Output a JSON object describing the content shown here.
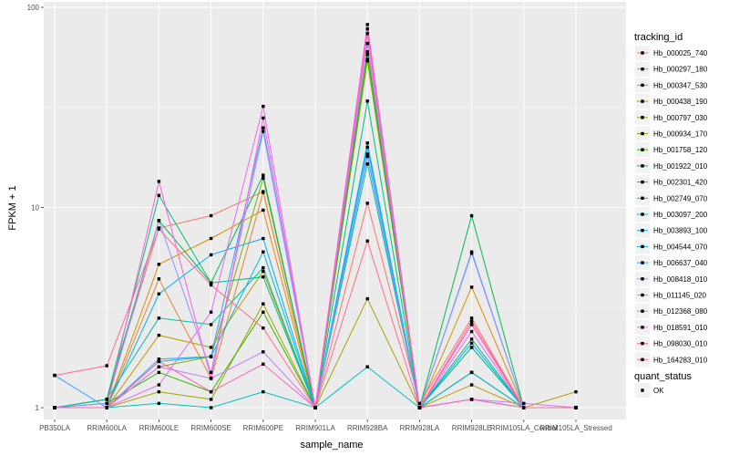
{
  "chart_data": {
    "type": "line",
    "xlabel": "sample_name",
    "ylabel": "FPKM + 1",
    "y_scale": "log10",
    "ylim": [
      1,
      100
    ],
    "y_ticks": [
      {
        "value": 1,
        "label": "1"
      },
      {
        "value": 10,
        "label": "10"
      },
      {
        "value": 100,
        "label": "100"
      }
    ],
    "categories": [
      "PB350LA",
      "RRIM600LA",
      "RRIM600LE",
      "RRIM600SE",
      "RRIM600PE",
      "RRIM901LA",
      "RRIM928BA",
      "RRIM928LA",
      "RRIM928LE",
      "RRIM105LA_Control",
      "RRIM105LA_Stressed"
    ],
    "background": "#ebebeb",
    "grid": true,
    "legend_position": "right",
    "color_legend_title": "tracking_id",
    "shape_legend_title": "quant_status",
    "shape_legend_entries": [
      "OK"
    ],
    "series": [
      {
        "name": "Hb_000025_740",
        "color": "#F8766D",
        "values": [
          1.0,
          1.1,
          7.9,
          9.1,
          12.0,
          1.0,
          10.5,
          1.05,
          2.8,
          1.0,
          1.0
        ]
      },
      {
        "name": "Hb_000297_180",
        "color": "#EA8331",
        "values": [
          1.0,
          1.0,
          4.4,
          1.4,
          11.9,
          1.0,
          74.0,
          1.0,
          2.6,
          1.0,
          1.0
        ]
      },
      {
        "name": "Hb_000347_530",
        "color": "#D89000",
        "values": [
          1.0,
          1.0,
          5.2,
          7.0,
          9.7,
          1.0,
          58.0,
          1.0,
          4.0,
          1.0,
          1.0
        ]
      },
      {
        "name": "Hb_000438_190",
        "color": "#C09B00",
        "values": [
          1.0,
          1.0,
          2.3,
          2.0,
          4.8,
          1.0,
          55.0,
          1.0,
          1.3,
          1.0,
          1.0
        ]
      },
      {
        "name": "Hb_000797_030",
        "color": "#A3A500",
        "values": [
          1.0,
          1.0,
          1.2,
          1.1,
          3.3,
          1.0,
          3.5,
          1.0,
          1.5,
          1.0,
          1.2
        ]
      },
      {
        "name": "Hb_000934_170",
        "color": "#7CAE00",
        "values": [
          1.0,
          1.0,
          1.6,
          1.8,
          14.0,
          1.0,
          54.0,
          1.0,
          2.0,
          1.0,
          1.0
        ]
      },
      {
        "name": "Hb_001758_120",
        "color": "#39B600",
        "values": [
          1.0,
          1.05,
          1.5,
          1.2,
          3.0,
          1.0,
          66.0,
          1.0,
          1.5,
          1.0,
          1.0
        ]
      },
      {
        "name": "Hb_001922_010",
        "color": "#00BB4E",
        "values": [
          1.0,
          1.1,
          8.6,
          4.2,
          14.5,
          1.0,
          60.0,
          1.0,
          9.1,
          1.0,
          1.0
        ]
      },
      {
        "name": "Hb_002301_420",
        "color": "#00BF7D",
        "values": [
          1.0,
          1.1,
          11.5,
          4.2,
          4.5,
          1.0,
          34.0,
          1.0,
          2.2,
          1.0,
          1.0
        ]
      },
      {
        "name": "Hb_002749_070",
        "color": "#00C1A3",
        "values": [
          1.0,
          1.1,
          2.8,
          2.6,
          5.0,
          1.0,
          16.5,
          1.0,
          2.0,
          1.0,
          1.0
        ]
      },
      {
        "name": "Hb_003097_200",
        "color": "#00BFC4",
        "values": [
          1.0,
          1.0,
          1.05,
          1.0,
          1.2,
          1.0,
          1.6,
          1.0,
          1.1,
          1.0,
          1.0
        ]
      },
      {
        "name": "Hb_003893_100",
        "color": "#00BAE0",
        "values": [
          1.0,
          1.0,
          1.7,
          1.8,
          6.0,
          1.0,
          21.0,
          1.0,
          1.5,
          1.0,
          1.0
        ]
      },
      {
        "name": "Hb_004544_070",
        "color": "#00B0F6",
        "values": [
          1.0,
          1.0,
          3.7,
          5.8,
          7.0,
          1.0,
          20.0,
          1.0,
          2.1,
          1.0,
          1.0
        ]
      },
      {
        "name": "Hb_006637_040",
        "color": "#35A2FF",
        "values": [
          1.45,
          1.0,
          1.75,
          1.8,
          25.0,
          1.0,
          18.0,
          1.0,
          6.0,
          1.0,
          1.0
        ]
      },
      {
        "name": "Hb_008418_010",
        "color": "#9590FF",
        "values": [
          1.0,
          1.05,
          8.6,
          1.5,
          24.0,
          1.0,
          18.5,
          1.0,
          5.9,
          1.0,
          1.0
        ]
      },
      {
        "name": "Hb_011145_020",
        "color": "#C77CFF",
        "values": [
          1.0,
          1.0,
          1.6,
          1.4,
          1.9,
          1.0,
          66.0,
          1.0,
          1.1,
          1.05,
          1.0
        ]
      },
      {
        "name": "Hb_012368_080",
        "color": "#E76BF3",
        "values": [
          1.0,
          1.0,
          1.3,
          3.0,
          32.0,
          1.0,
          78.0,
          1.0,
          2.4,
          1.0,
          1.0
        ]
      },
      {
        "name": "Hb_018591_010",
        "color": "#FA62DB",
        "values": [
          1.0,
          1.0,
          13.5,
          1.4,
          28.0,
          1.0,
          82.0,
          1.0,
          2.6,
          1.0,
          1.0
        ]
      },
      {
        "name": "Hb_098030_010",
        "color": "#FF62BC",
        "values": [
          1.0,
          1.0,
          1.7,
          1.2,
          1.65,
          1.0,
          74.0,
          1.0,
          1.1,
          1.0,
          1.0
        ]
      },
      {
        "name": "Hb_164283_010",
        "color": "#FF6C91",
        "values": [
          1.45,
          1.62,
          7.8,
          4.1,
          2.5,
          1.0,
          6.8,
          1.0,
          2.7,
          1.0,
          1.0
        ]
      }
    ]
  }
}
